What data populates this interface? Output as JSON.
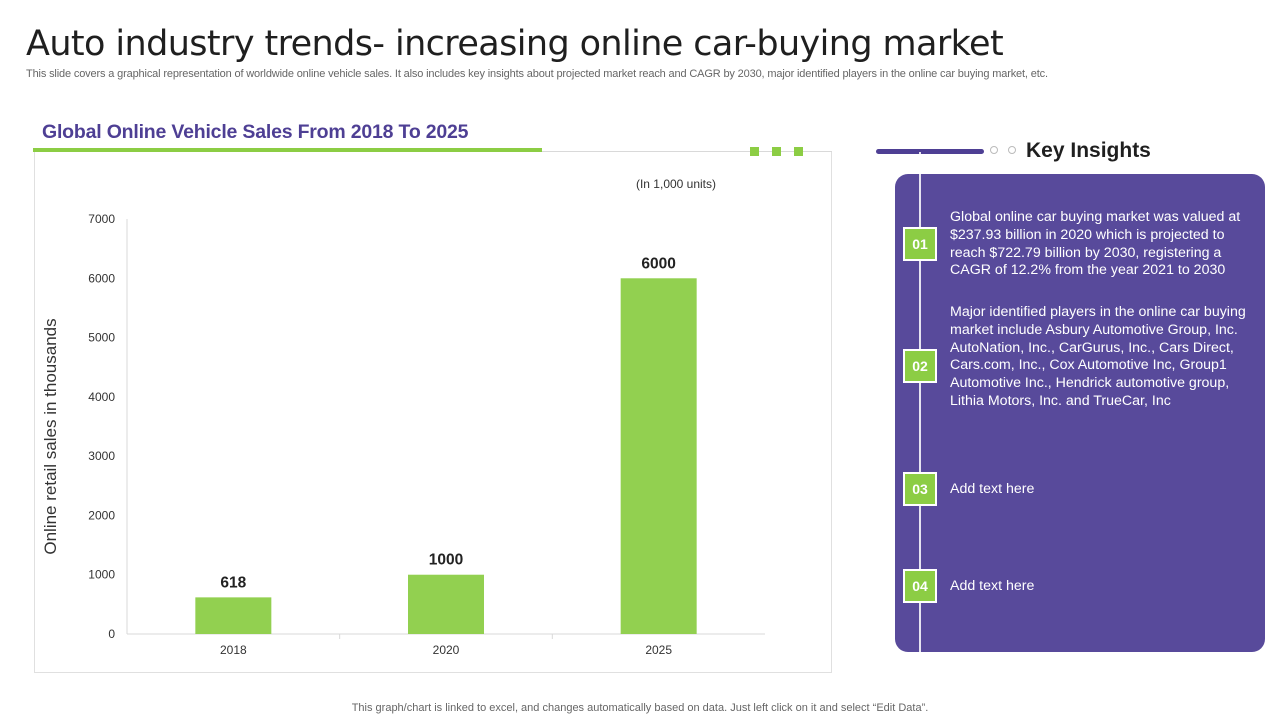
{
  "header": {
    "title": "Auto industry trends- increasing online car-buying market",
    "subtitle": "This slide covers a graphical representation of worldwide online vehicle sales. It also includes key insights about projected market reach and CAGR  by 2030, major identified players in the online car buying market, etc."
  },
  "chart_section": {
    "title": "Global Online Vehicle Sales From 2018 To 2025"
  },
  "chart_data": {
    "type": "bar",
    "title": "Global Online Vehicle Sales From 2018 To 2025",
    "unit_note": "(In  1,000  units)",
    "categories": [
      "2018",
      "2020",
      "2025"
    ],
    "values": [
      618,
      1000,
      6000
    ],
    "data_labels": [
      "618",
      "1000",
      "6000"
    ],
    "ylabel": "Online retail sales in thousands",
    "xlabel": "",
    "ylim": [
      0,
      7000
    ],
    "yticks": [
      0,
      1000,
      2000,
      3000,
      4000,
      5000,
      6000,
      7000
    ],
    "grid": false,
    "bar_color": "#92d050"
  },
  "insights": {
    "title": "Key Insights",
    "items": [
      {
        "num": "01",
        "text": "Global online car buying market was valued at $237.93 billion in 2020 which is projected to reach $722.79 billion by 2030, registering a CAGR of 12.2% from the year 2021 to 2030"
      },
      {
        "num": "02",
        "text": "Major identified players in the online car buying market include Asbury Automotive Group, Inc. AutoNation, Inc., CarGurus, Inc., Cars Direct, Cars.com, Inc., Cox Automotive Inc, Group1 Automotive Inc., Hendrick automotive group, Lithia Motors, Inc. and TrueCar, Inc"
      },
      {
        "num": "03",
        "text": "Add text here"
      },
      {
        "num": "04",
        "text": "Add text here"
      }
    ]
  },
  "footer": {
    "note": "This graph/chart is linked to excel,  and changes automatically based on data. Just left click on it and select “Edit Data”."
  },
  "colors": {
    "accent_purple": "#4e3f94",
    "panel_purple": "#584a9b",
    "accent_green": "#8ccd44"
  }
}
